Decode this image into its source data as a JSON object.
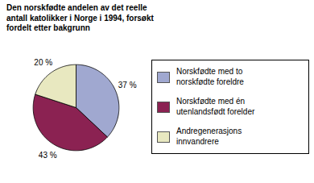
{
  "chart_data": {
    "type": "pie",
    "title": "Den norskfødte andelen av det reelle\nantall katolikker i Norge i 1994, forsøkt\nfordelt etter bakgrunn",
    "categories": [
      "Norskfødte med to\nnorskfødte foreldre",
      "Norskfødte med én\nutenlandsfødt forelder",
      "Andregenerasjons\ninnvandrere"
    ],
    "values": [
      37,
      43,
      20
    ],
    "value_labels": [
      "37 %",
      "43 %",
      "20 %"
    ],
    "colors": [
      "#a0a8d0",
      "#8b2252",
      "#e8e8c0"
    ],
    "data_labels": true,
    "legend": "right"
  }
}
